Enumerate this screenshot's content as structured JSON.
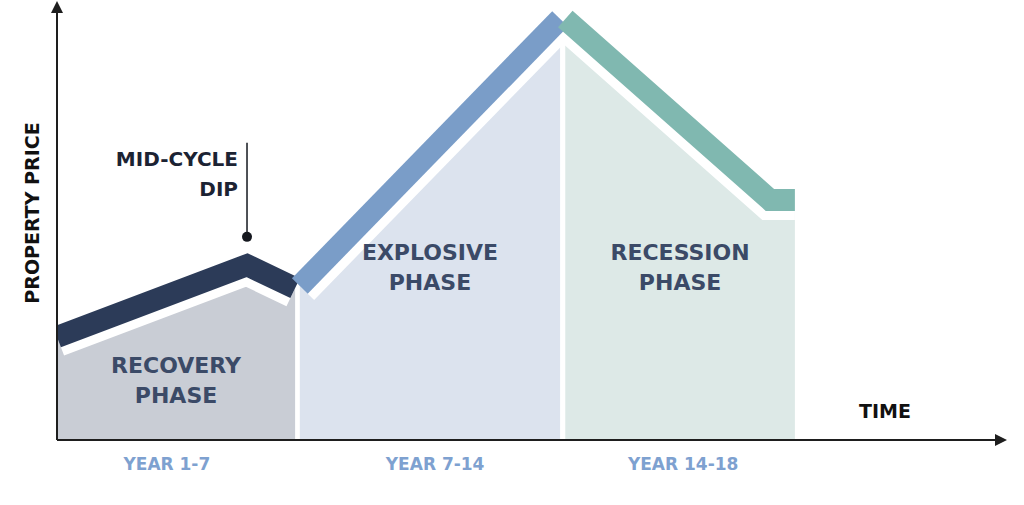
{
  "chart_data": {
    "type": "area",
    "x_label": "TIME",
    "y_label": "PROPERTY PRICE",
    "xlim": [
      0,
      20
    ],
    "ylim": [
      0,
      100
    ],
    "xticks": [
      {
        "value": 2.33,
        "label": "YEAR 1-7"
      },
      {
        "value": 8.02,
        "label": "YEAR 7-14"
      },
      {
        "value": 13.28,
        "label": "YEAR 14-18"
      }
    ],
    "tick_labels": "x",
    "grid": false,
    "series": [
      {
        "name": "RECOVERY PHASE",
        "color": "#2c3b58",
        "x": [
          0,
          4.03,
          5.05
        ],
        "values": [
          23.7,
          40.2,
          34.9
        ]
      },
      {
        "name": "EXPLOSIVE PHASE",
        "color": "#7a9dc8",
        "x": [
          5.15,
          10.67
        ],
        "values": [
          35.4,
          96.8
        ]
      },
      {
        "name": "RECESSION PHASE",
        "color": "#80b8b0",
        "x": [
          10.78,
          15.12,
          15.65
        ],
        "values": [
          96.8,
          55.2,
          55.2
        ]
      }
    ],
    "annotations": [
      {
        "text": "MID-CYCLE DIP",
        "x": 4.03,
        "y": 46.7
      }
    ]
  }
}
